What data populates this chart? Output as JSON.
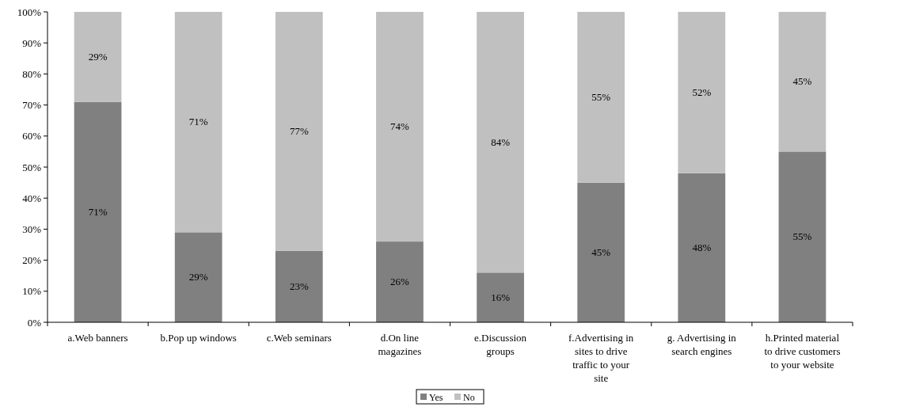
{
  "chart_data": {
    "type": "bar",
    "stacked": true,
    "categories": [
      "a.Web banners",
      "b.Pop up windows",
      "c.Web seminars",
      "d.On line magazines",
      "e.Discussion groups",
      "f.Advertising in sites to drive traffic to your site",
      "g. Advertising in search engines",
      "h.Printed material to drive customers to your website"
    ],
    "series": [
      {
        "name": "Yes",
        "color": "#808080",
        "values": [
          71,
          29,
          23,
          26,
          16,
          45,
          48,
          55
        ],
        "value_labels": [
          "71%",
          "29%",
          "23%",
          "26%",
          "16%",
          "45%",
          "48%",
          "55%"
        ]
      },
      {
        "name": "No",
        "color": "#c0c0c0",
        "values": [
          29,
          71,
          77,
          74,
          84,
          55,
          52,
          45
        ],
        "value_labels": [
          "29%",
          "71%",
          "77%",
          "74%",
          "84%",
          "55%",
          "52%",
          "45%"
        ]
      }
    ],
    "ylim": [
      0,
      100
    ],
    "yticks": [
      {
        "value": 0,
        "label": "0%"
      },
      {
        "value": 10,
        "label": "10%"
      },
      {
        "value": 20,
        "label": "20%"
      },
      {
        "value": 30,
        "label": "30%"
      },
      {
        "value": 40,
        "label": "40%"
      },
      {
        "value": 50,
        "label": "50%"
      },
      {
        "value": 60,
        "label": "60%"
      },
      {
        "value": 70,
        "label": "70%"
      },
      {
        "value": 80,
        "label": "80%"
      },
      {
        "value": 90,
        "label": "90%"
      },
      {
        "value": 100,
        "label": "100%"
      }
    ],
    "grid": false,
    "legend": "bottom"
  }
}
